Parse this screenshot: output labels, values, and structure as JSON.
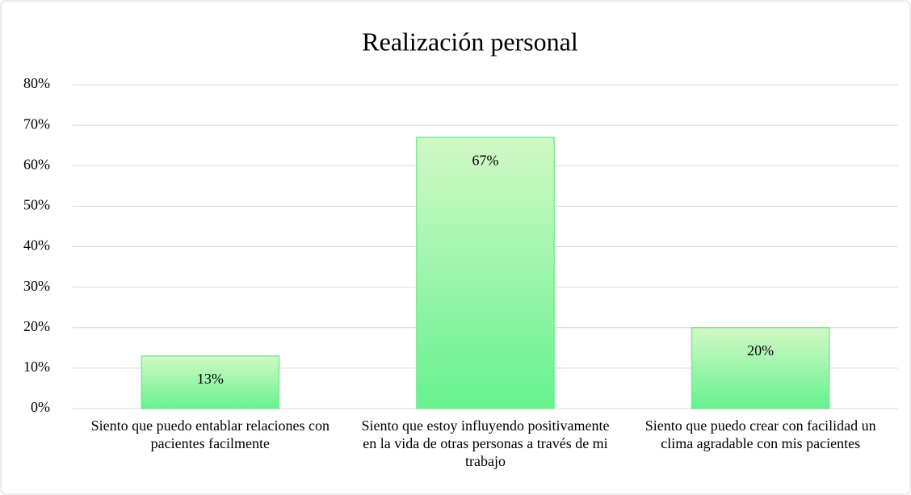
{
  "chart_data": {
    "type": "bar",
    "title": "Realización personal",
    "categories": [
      "Siento que puedo entablar relaciones con pacientes facilmente",
      "Siento que estoy influyendo positivamente en la vida de otras personas a través de mi trabajo",
      "Siento que puedo crear con facilidad un clima agradable con mis pacientes"
    ],
    "values": [
      13,
      67,
      20
    ],
    "value_labels": [
      "13%",
      "67%",
      "20%"
    ],
    "color": "#66f28f",
    "ylim": [
      0,
      80
    ],
    "yticks": [
      {
        "value": 0,
        "label": "0%"
      },
      {
        "value": 10,
        "label": "10%"
      },
      {
        "value": 20,
        "label": "20%"
      },
      {
        "value": 30,
        "label": "30%"
      },
      {
        "value": 40,
        "label": "40%"
      },
      {
        "value": 50,
        "label": "50%"
      },
      {
        "value": 60,
        "label": "60%"
      },
      {
        "value": 70,
        "label": "70%"
      },
      {
        "value": 80,
        "label": "80%"
      }
    ],
    "grid": true
  }
}
